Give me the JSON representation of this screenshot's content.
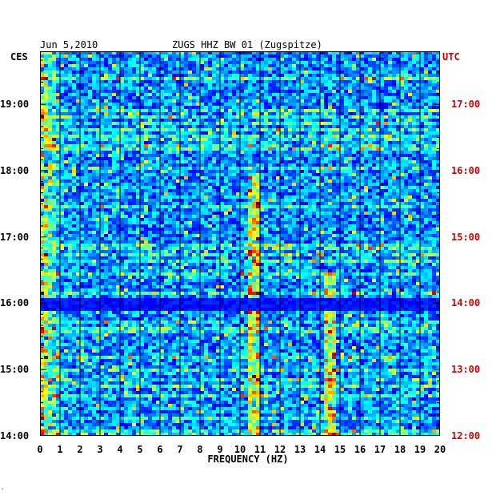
{
  "header": {
    "date": "Jun 5,2010",
    "station": "ZUGS HHZ BW 01 (Zugspitze)"
  },
  "timezones": {
    "left": "CES",
    "right": "UTC"
  },
  "footer_mark": "⸱",
  "colors": {
    "background": "#0000b4",
    "utc_label": "#d40000",
    "grid": "#000000"
  },
  "chart_data": {
    "type": "heatmap",
    "title": "ZUGS HHZ BW 01 (Zugspitze)",
    "xlabel": "FREQUENCY (HZ)",
    "xlim": [
      0,
      20
    ],
    "x_ticks": [
      "0",
      "1",
      "2",
      "3",
      "4",
      "5",
      "6",
      "7",
      "8",
      "9",
      "10",
      "11",
      "12",
      "13",
      "14",
      "15",
      "16",
      "17",
      "18",
      "19",
      "20"
    ],
    "ylim_local": [
      "14:00",
      "19:48"
    ],
    "y_ticks_local": [
      "19:00",
      "18:00",
      "17:00",
      "16:00",
      "15:00",
      "14:00"
    ],
    "y_ticks_utc": [
      "17:00",
      "16:00",
      "15:00",
      "14:00",
      "13:00",
      "12:00"
    ],
    "grid": true,
    "colormap": "jet",
    "features": [
      {
        "description": "persistent narrow band",
        "freq_hz": 10.7,
        "from": "14:00",
        "to": "18:00"
      },
      {
        "description": "intermittent band",
        "freq_hz": 14.5,
        "from": "14:00",
        "to": "16:30"
      },
      {
        "description": "strong low-frequency energy",
        "freq_hz": 0.3,
        "from": "14:00",
        "to": "19:48"
      },
      {
        "description": "quiet interval",
        "freq_hz": null,
        "from": "15:55",
        "to": "16:05"
      }
    ]
  }
}
